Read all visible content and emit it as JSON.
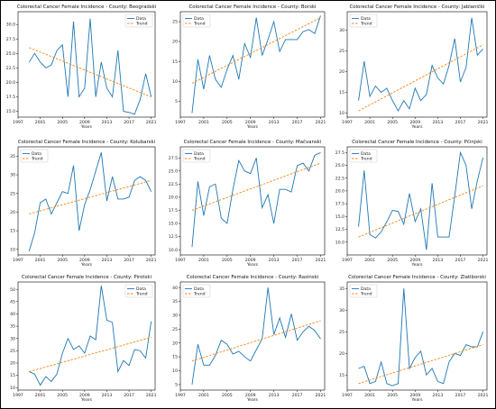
{
  "chart_data": [
    {
      "type": "line",
      "title": "Colorectal Cancer Female Incidence - County: Beogradski",
      "xlabel": "Years",
      "xticks": [
        1997,
        2001,
        2005,
        2009,
        2013,
        2017,
        2021
      ],
      "yticks": [
        15.0,
        17.5,
        20.0,
        22.5,
        25.0,
        27.5,
        30.0
      ],
      "xlim": [
        1997,
        2021.7
      ],
      "ylim": [
        14.0,
        32.2
      ],
      "legend": {
        "position": "top-right",
        "entries": [
          "Data",
          "Trend"
        ]
      },
      "series": [
        {
          "name": "Data",
          "style": "solid",
          "color": "#1f77b4",
          "x": [
            1999,
            2000,
            2001,
            2002,
            2003,
            2004,
            2005,
            2006,
            2007,
            2008,
            2009,
            2010,
            2011,
            2012,
            2013,
            2014,
            2015,
            2016,
            2017,
            2018,
            2019,
            2020,
            2021
          ],
          "y": [
            23.5,
            25.0,
            23.5,
            22.5,
            23.0,
            25.5,
            26.5,
            17.5,
            30.5,
            17.5,
            19.0,
            31.0,
            17.5,
            23.5,
            19.0,
            17.5,
            25.5,
            15.0,
            14.8,
            14.5,
            17.0,
            21.5,
            17.5
          ]
        },
        {
          "name": "Trend",
          "style": "dashed",
          "color": "#ff7f0e",
          "x": [
            1999,
            2021
          ],
          "y": [
            26.0,
            17.5
          ]
        }
      ]
    },
    {
      "type": "line",
      "title": "Colorectal Cancer Female Incidence - County: Borski",
      "xlabel": "Years",
      "xticks": [
        1997,
        2001,
        2005,
        2009,
        2013,
        2017,
        2021
      ],
      "yticks": [
        5,
        10,
        15,
        20,
        25
      ],
      "xlim": [
        1997,
        2021.7
      ],
      "ylim": [
        1,
        27.5
      ],
      "legend": {
        "position": "top-left",
        "entries": [
          "Data",
          "Trend"
        ]
      },
      "series": [
        {
          "name": "Data",
          "style": "solid",
          "color": "#1f77b4",
          "x": [
            1999,
            2000,
            2001,
            2002,
            2003,
            2004,
            2005,
            2006,
            2007,
            2008,
            2009,
            2010,
            2011,
            2012,
            2013,
            2014,
            2015,
            2016,
            2017,
            2018,
            2019,
            2020,
            2021
          ],
          "y": [
            2.0,
            15.5,
            8.0,
            16.5,
            10.5,
            8.5,
            13.0,
            16.5,
            10.5,
            19.5,
            16.0,
            26.0,
            16.5,
            20.5,
            25.0,
            17.5,
            20.5,
            20.5,
            20.5,
            22.5,
            23.0,
            22.0,
            26.5
          ]
        },
        {
          "name": "Trend",
          "style": "dashed",
          "color": "#ff7f0e",
          "x": [
            1999,
            2021
          ],
          "y": [
            9.5,
            26.0
          ]
        }
      ]
    },
    {
      "type": "line",
      "title": "Colorectal Cancer Female Incidence - County: Jablanički",
      "xlabel": "Years",
      "xticks": [
        1997,
        2001,
        2005,
        2009,
        2013,
        2017,
        2021
      ],
      "yticks": [
        10,
        15,
        20,
        25,
        30
      ],
      "xlim": [
        1997,
        2021.7
      ],
      "ylim": [
        9,
        34.5
      ],
      "legend": {
        "position": "top-left",
        "entries": [
          "Data",
          "Trend"
        ]
      },
      "series": [
        {
          "name": "Data",
          "style": "solid",
          "color": "#1f77b4",
          "x": [
            1999,
            2000,
            2001,
            2002,
            2003,
            2004,
            2005,
            2006,
            2007,
            2008,
            2009,
            2010,
            2011,
            2012,
            2013,
            2014,
            2015,
            2016,
            2017,
            2018,
            2019,
            2020,
            2021
          ],
          "y": [
            13.0,
            22.5,
            14.0,
            16.5,
            15.0,
            16.0,
            13.0,
            10.5,
            13.0,
            11.0,
            16.0,
            13.0,
            14.5,
            21.5,
            18.5,
            17.0,
            21.5,
            28.0,
            17.5,
            21.0,
            33.0,
            24.0,
            25.5
          ]
        },
        {
          "name": "Trend",
          "style": "dashed",
          "color": "#ff7f0e",
          "x": [
            1999,
            2021
          ],
          "y": [
            10.5,
            26.5
          ]
        }
      ]
    },
    {
      "type": "line",
      "title": "Colorectal Cancer Female Incidence - County: Kolubarski",
      "xlabel": "Years",
      "xticks": [
        1997,
        2001,
        2005,
        2009,
        2013,
        2017,
        2021
      ],
      "yticks": [
        10,
        15,
        20,
        25,
        30,
        35
      ],
      "xlim": [
        1997,
        2021.7
      ],
      "ylim": [
        8.5,
        37.5
      ],
      "legend": {
        "position": "top-left",
        "entries": [
          "Data",
          "Trend"
        ]
      },
      "series": [
        {
          "name": "Data",
          "style": "solid",
          "color": "#1f77b4",
          "x": [
            1999,
            2000,
            2001,
            2002,
            2003,
            2004,
            2005,
            2006,
            2007,
            2008,
            2009,
            2010,
            2011,
            2012,
            2013,
            2014,
            2015,
            2016,
            2017,
            2018,
            2019,
            2020,
            2021
          ],
          "y": [
            9.5,
            14.5,
            22.5,
            23.5,
            19.5,
            22.5,
            25.5,
            25.0,
            32.5,
            15.0,
            22.0,
            26.0,
            31.0,
            36.0,
            23.0,
            29.5,
            23.5,
            23.5,
            24.0,
            28.5,
            29.5,
            28.5,
            25.5
          ]
        },
        {
          "name": "Trend",
          "style": "dashed",
          "color": "#ff7f0e",
          "x": [
            1999,
            2021
          ],
          "y": [
            19.5,
            28.5
          ]
        }
      ]
    },
    {
      "type": "line",
      "title": "Colorectal Cancer Female Incidence - County: Mačvanski",
      "xlabel": "Years",
      "xticks": [
        1997,
        2001,
        2005,
        2009,
        2013,
        2017,
        2021
      ],
      "yticks": [
        10.0,
        12.5,
        15.0,
        17.5,
        20.0,
        22.5,
        25.0,
        27.5
      ],
      "xlim": [
        1997,
        2021.7
      ],
      "ylim": [
        9.0,
        29.6
      ],
      "legend": {
        "position": "top-left",
        "entries": [
          "Data",
          "Trend"
        ]
      },
      "series": [
        {
          "name": "Data",
          "style": "solid",
          "color": "#1f77b4",
          "x": [
            1999,
            2000,
            2001,
            2002,
            2003,
            2004,
            2005,
            2006,
            2007,
            2008,
            2009,
            2010,
            2011,
            2012,
            2013,
            2014,
            2015,
            2016,
            2017,
            2018,
            2019,
            2020,
            2021
          ],
          "y": [
            10.5,
            23.0,
            16.5,
            22.0,
            22.5,
            16.0,
            15.0,
            21.5,
            27.0,
            25.0,
            24.5,
            27.5,
            18.0,
            20.5,
            15.0,
            21.5,
            21.5,
            21.0,
            26.0,
            26.5,
            25.0,
            28.0,
            28.5
          ]
        },
        {
          "name": "Trend",
          "style": "dashed",
          "color": "#ff7f0e",
          "x": [
            1999,
            2021
          ],
          "y": [
            17.5,
            26.5
          ]
        }
      ]
    },
    {
      "type": "line",
      "title": "Colorectal Cancer Female Incidence - County: Pčinjski",
      "xlabel": "Years",
      "xticks": [
        1997,
        2001,
        2005,
        2009,
        2013,
        2017,
        2021
      ],
      "yticks": [
        10.0,
        12.5,
        15.0,
        17.5,
        20.0,
        22.5,
        25.0,
        27.5
      ],
      "xlim": [
        1997,
        2021.7
      ],
      "ylim": [
        7.5,
        28.6
      ],
      "legend": {
        "position": "top-left",
        "entries": [
          "Data",
          "Trend"
        ]
      },
      "series": [
        {
          "name": "Data",
          "style": "solid",
          "color": "#1f77b4",
          "x": [
            1999,
            2000,
            2001,
            2002,
            2003,
            2004,
            2005,
            2006,
            2007,
            2008,
            2009,
            2010,
            2011,
            2012,
            2013,
            2014,
            2015,
            2016,
            2017,
            2018,
            2019,
            2020,
            2021
          ],
          "y": [
            13.0,
            24.0,
            11.5,
            10.8,
            12.0,
            14.0,
            16.2,
            16.0,
            13.5,
            19.5,
            14.0,
            16.5,
            8.5,
            21.5,
            11.0,
            11.0,
            11.0,
            19.0,
            27.5,
            25.0,
            16.5,
            22.0,
            26.5
          ]
        },
        {
          "name": "Trend",
          "style": "dashed",
          "color": "#ff7f0e",
          "x": [
            1999,
            2021
          ],
          "y": [
            11.0,
            21.0
          ]
        }
      ]
    },
    {
      "type": "line",
      "title": "Colorectal Cancer Female Incidence - County: Pirotski",
      "xlabel": "Years",
      "xticks": [
        1997,
        2001,
        2005,
        2009,
        2013,
        2017,
        2021
      ],
      "yticks": [
        10,
        15,
        20,
        25,
        30,
        35,
        40,
        45,
        50
      ],
      "xlim": [
        1997,
        2021.7
      ],
      "ylim": [
        9,
        53
      ],
      "legend": {
        "position": "top-right",
        "entries": [
          "Data",
          "Trend"
        ]
      },
      "series": [
        {
          "name": "Data",
          "style": "solid",
          "color": "#1f77b4",
          "x": [
            1999,
            2000,
            2001,
            2002,
            2003,
            2004,
            2005,
            2006,
            2007,
            2008,
            2009,
            2010,
            2011,
            2012,
            2013,
            2014,
            2015,
            2016,
            2017,
            2018,
            2019,
            2020,
            2021
          ],
          "y": [
            16.5,
            15.5,
            11.0,
            14.5,
            12.5,
            15.5,
            24.0,
            30.0,
            25.5,
            27.0,
            24.0,
            31.0,
            29.5,
            51.5,
            37.5,
            36.5,
            16.5,
            21.0,
            19.0,
            25.5,
            25.0,
            22.0,
            37.0
          ]
        },
        {
          "name": "Trend",
          "style": "dashed",
          "color": "#ff7f0e",
          "x": [
            1999,
            2021
          ],
          "y": [
            16.5,
            30.5
          ]
        }
      ]
    },
    {
      "type": "line",
      "title": "Colorectal Cancer Female Incidence - County: Rasinski",
      "xlabel": "Years",
      "xticks": [
        1997,
        2001,
        2005,
        2009,
        2013,
        2017,
        2021
      ],
      "yticks": [
        5,
        10,
        15,
        20,
        25,
        30,
        35,
        40
      ],
      "xlim": [
        1997,
        2021.7
      ],
      "ylim": [
        3,
        42
      ],
      "legend": {
        "position": "top-left",
        "entries": [
          "Data",
          "Trend"
        ]
      },
      "series": [
        {
          "name": "Data",
          "style": "solid",
          "color": "#1f77b4",
          "x": [
            1999,
            2000,
            2001,
            2002,
            2003,
            2004,
            2005,
            2006,
            2007,
            2008,
            2009,
            2010,
            2011,
            2012,
            2013,
            2014,
            2015,
            2016,
            2017,
            2018,
            2019,
            2020,
            2021
          ],
          "y": [
            5.0,
            19.5,
            12.0,
            12.0,
            15.5,
            21.0,
            19.5,
            16.0,
            17.0,
            15.0,
            13.5,
            17.5,
            21.5,
            40.0,
            23.0,
            29.0,
            22.0,
            30.5,
            21.0,
            24.0,
            26.0,
            24.5,
            21.5
          ]
        },
        {
          "name": "Trend",
          "style": "dashed",
          "color": "#ff7f0e",
          "x": [
            1999,
            2021
          ],
          "y": [
            13.5,
            28.0
          ]
        }
      ]
    },
    {
      "type": "line",
      "title": "Colorectal Cancer Female Incidence - County: Zlatiborski",
      "xlabel": "Years",
      "xticks": [
        1997,
        2001,
        2005,
        2009,
        2013,
        2017,
        2021
      ],
      "yticks": [
        15,
        20,
        25,
        30,
        35
      ],
      "xlim": [
        1997,
        2021.7
      ],
      "ylim": [
        11.5,
        36.5
      ],
      "legend": {
        "position": "top-left",
        "entries": [
          "Data",
          "Trend"
        ]
      },
      "series": [
        {
          "name": "Data",
          "style": "solid",
          "color": "#1f77b4",
          "x": [
            1999,
            2000,
            2001,
            2002,
            2003,
            2004,
            2005,
            2006,
            2007,
            2008,
            2009,
            2010,
            2011,
            2012,
            2013,
            2014,
            2015,
            2016,
            2017,
            2018,
            2019,
            2020,
            2021
          ],
          "y": [
            16.5,
            17.0,
            13.0,
            13.5,
            18.0,
            13.0,
            12.5,
            13.0,
            35.0,
            16.5,
            19.0,
            20.5,
            15.0,
            16.5,
            13.5,
            13.0,
            18.0,
            20.0,
            19.5,
            22.0,
            21.5,
            21.5,
            25.0
          ]
        },
        {
          "name": "Trend",
          "style": "dashed",
          "color": "#ff7f0e",
          "x": [
            1999,
            2021
          ],
          "y": [
            13.0,
            22.0
          ]
        }
      ]
    }
  ]
}
